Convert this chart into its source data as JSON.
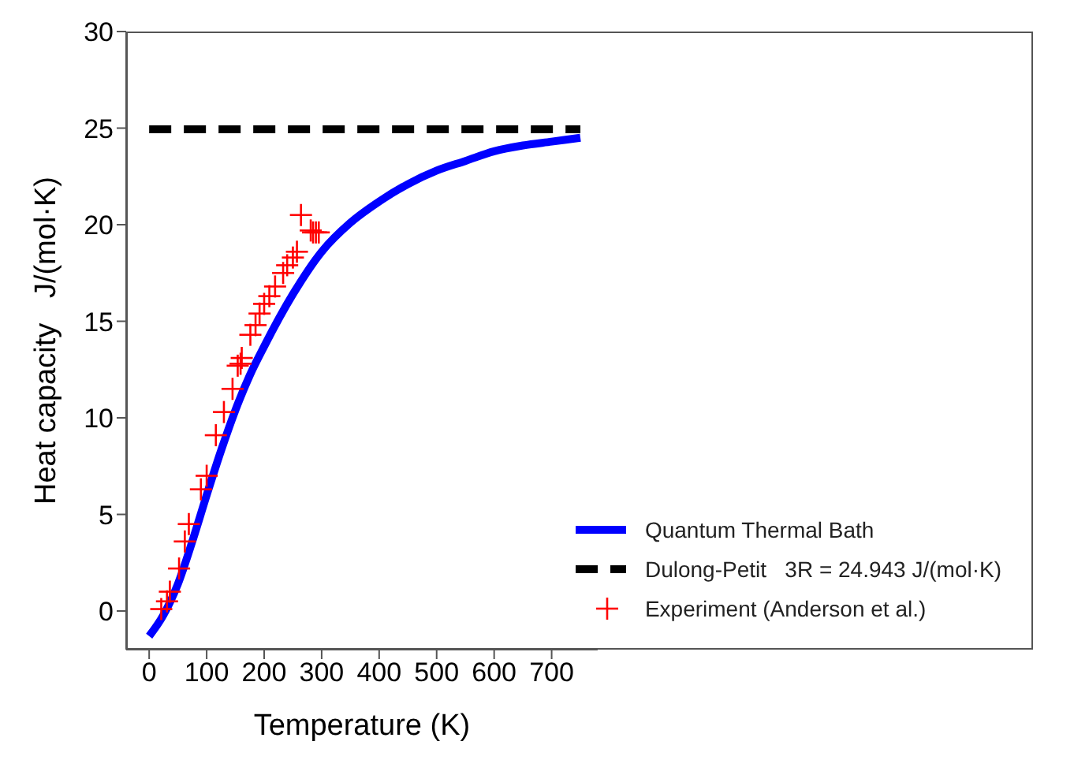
{
  "chart_data": {
    "type": "line",
    "xlabel": "Temperature (K)",
    "ylabel": "Heat capacity   J/(mol·K)",
    "xlim": [
      -40,
      780
    ],
    "ylim": [
      -2,
      30
    ],
    "xticks": [
      0,
      100,
      200,
      300,
      400,
      500,
      600,
      700
    ],
    "yticks": [
      0,
      5,
      10,
      15,
      20,
      25,
      30
    ],
    "grid": false,
    "legend": "bottom right",
    "series": [
      {
        "name": "Quantum Thermal Bath",
        "color": "#0000ff",
        "line_style": "solid",
        "marker": "none",
        "x": [
          0,
          25,
          50,
          75,
          100,
          125,
          150,
          175,
          200,
          250,
          300,
          350,
          400,
          450,
          500,
          550,
          600,
          650,
          700,
          750
        ],
        "values": [
          -1.3,
          -0.2,
          1.4,
          3.6,
          6.0,
          8.3,
          10.4,
          12.2,
          13.7,
          16.4,
          18.6,
          20.1,
          21.2,
          22.1,
          22.8,
          23.3,
          23.8,
          24.1,
          24.3,
          24.5
        ]
      },
      {
        "name": "Dulong-Petit   3R = 24.943 J/(mol·K)",
        "color": "#000000",
        "line_style": "dashed",
        "marker": "none",
        "x": [
          0,
          750
        ],
        "values": [
          24.943,
          24.943
        ]
      },
      {
        "name": "Experiment (Anderson et al.)",
        "type": "scatter",
        "color": "#ff0000",
        "marker": "cross",
        "x": [
          21,
          31,
          36,
          52,
          62,
          69,
          90,
          100,
          116,
          130,
          145,
          154,
          159,
          161,
          176,
          185,
          192,
          200,
          209,
          219,
          233,
          240,
          250,
          257,
          264,
          281,
          285,
          290,
          295
        ],
        "values": [
          0.1,
          0.5,
          1.0,
          2.2,
          3.6,
          4.5,
          6.3,
          7.0,
          9.1,
          10.3,
          11.5,
          12.7,
          12.8,
          13.1,
          14.3,
          14.8,
          15.4,
          15.9,
          16.3,
          16.8,
          17.5,
          17.9,
          18.3,
          18.6,
          20.5,
          19.7,
          19.6,
          19.6,
          19.6
        ]
      }
    ]
  }
}
